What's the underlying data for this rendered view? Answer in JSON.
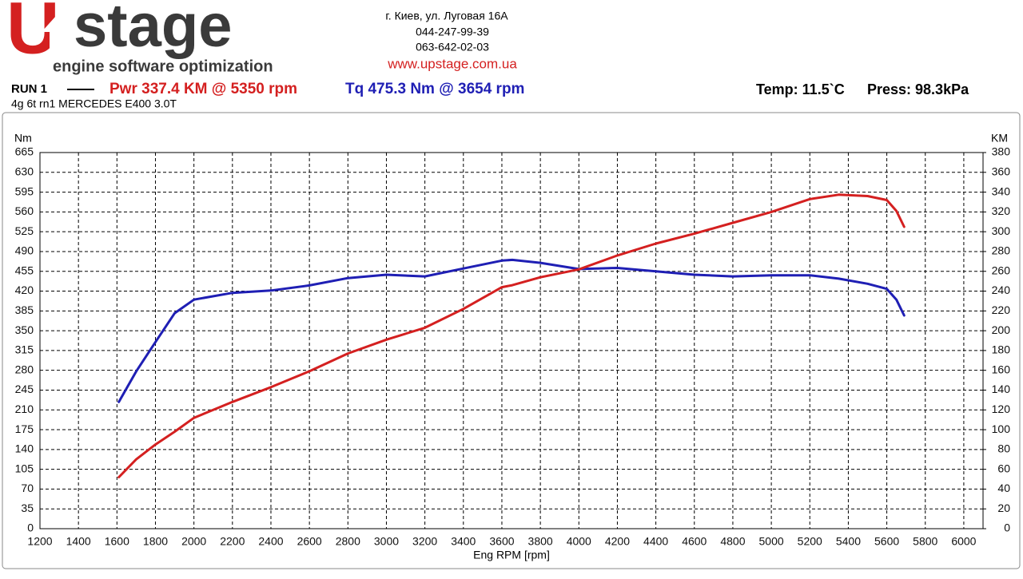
{
  "header": {
    "logo_mark": "U",
    "logo_text": "stage",
    "tagline": "engine software optimization",
    "address": [
      "г. Киев, ул. Луговая 16А",
      "044-247-99-39",
      "063-642-02-03"
    ],
    "website": "www.upstage.com.ua"
  },
  "chart_data": {
    "type": "line",
    "run_label": "RUN 1",
    "power_summary": "Pwr  337.4 KM @ 5350 rpm",
    "torque_summary": "Tq 475.3 Nm @ 3654 rpm",
    "temperature": "Temp: 11.5`C",
    "pressure": "Press: 98.3kPa",
    "subtitle": "4g 6t rn1 MERCEDES E400 3.0T",
    "x_label": "Eng RPM [rpm]",
    "y_label": "Nm",
    "y2_label": "KM",
    "x": [
      1610,
      1700,
      1800,
      1900,
      2000,
      2200,
      2400,
      2600,
      2800,
      3000,
      3200,
      3400,
      3600,
      3654,
      3800,
      4000,
      4200,
      4400,
      4600,
      4800,
      5000,
      5200,
      5350,
      5500,
      5600,
      5650,
      5690
    ],
    "series": [
      {
        "name": "Tq",
        "color": "#1f1fb4",
        "axis": "y",
        "values": [
          224,
          278,
          330,
          381,
          405,
          417,
          421,
          430,
          443,
          449,
          446,
          460,
          474,
          475.3,
          470,
          459,
          461,
          455,
          449,
          446,
          448,
          448,
          442,
          433,
          424,
          405,
          377
        ]
      },
      {
        "name": "Pwr",
        "color": "#d42020",
        "axis": "y2",
        "values": [
          52,
          70,
          85,
          98,
          112,
          128,
          143,
          159,
          177,
          191,
          203,
          222,
          244,
          246,
          254,
          262,
          276,
          288,
          298,
          309,
          320,
          333,
          337.4,
          336,
          332,
          321,
          305
        ]
      }
    ],
    "xlim": [
      1200,
      6100
    ],
    "xticks": [
      1200,
      1400,
      1600,
      1800,
      2000,
      2200,
      2400,
      2600,
      2800,
      3000,
      3200,
      3400,
      3600,
      3800,
      4000,
      4200,
      4400,
      4600,
      4800,
      5000,
      5200,
      5400,
      5600,
      5800,
      6000
    ],
    "ylim": [
      0,
      665
    ],
    "yticks": [
      0,
      35,
      70,
      105,
      140,
      175,
      210,
      245,
      280,
      315,
      350,
      385,
      420,
      455,
      490,
      525,
      560,
      595,
      630,
      665
    ],
    "y2lim": [
      0,
      380
    ],
    "y2ticks": [
      0,
      20,
      40,
      60,
      80,
      100,
      120,
      140,
      160,
      180,
      200,
      220,
      240,
      260,
      280,
      300,
      320,
      340,
      360,
      380
    ],
    "grid": true
  }
}
